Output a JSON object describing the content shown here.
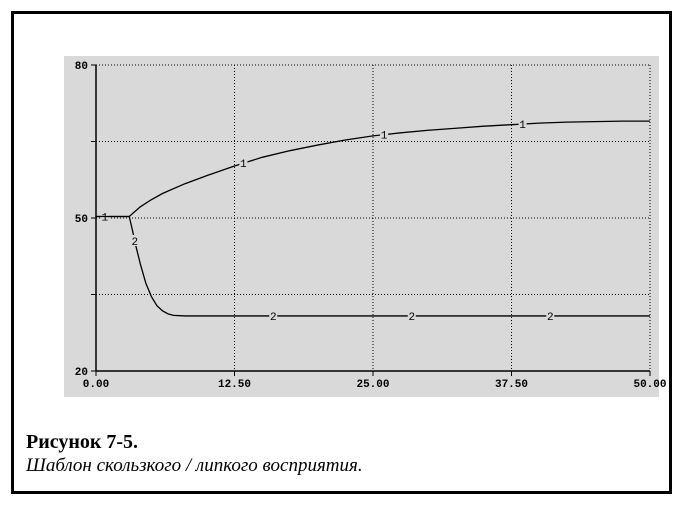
{
  "caption": {
    "title": "Рисунок 7-5.",
    "text": "Шаблон скользкого / липкого восприятия."
  },
  "chart_data": {
    "type": "line",
    "xlim": [
      0,
      50
    ],
    "ylim": [
      20,
      80
    ],
    "x_ticks": [
      "0.00",
      "12.50",
      "25.00",
      "37.50",
      "50.00"
    ],
    "y_ticks": [
      "80",
      "50",
      "20"
    ],
    "x_grid": [
      12.5,
      25,
      37.5
    ],
    "y_grid": [
      35,
      50,
      65
    ],
    "grid": true,
    "background": "#d9d9d9",
    "series": [
      {
        "label": "1",
        "x": [
          0,
          3,
          4,
          5,
          6,
          8,
          10,
          12.5,
          15,
          17.5,
          20,
          22.5,
          25,
          27.5,
          30,
          32.5,
          35,
          37.5,
          40,
          42.5,
          45,
          47.5,
          50
        ],
        "y": [
          50.3,
          50.3,
          52.2,
          53.6,
          54.8,
          56.7,
          58.3,
          60.2,
          61.9,
          63.2,
          64.3,
          65.3,
          66.1,
          66.7,
          67.2,
          67.6,
          68.0,
          68.3,
          68.6,
          68.8,
          68.9,
          69.0,
          69.0
        ],
        "label_x": [
          0.8,
          13.3,
          26,
          38.5
        ]
      },
      {
        "label": "2",
        "x": [
          0,
          3,
          3.3,
          3.6,
          4,
          4.5,
          5,
          5.5,
          6,
          6.5,
          7,
          8,
          10,
          15,
          20,
          30,
          40,
          50
        ],
        "y": [
          50.3,
          50.3,
          47.5,
          44.5,
          41,
          37.2,
          34.6,
          32.8,
          31.8,
          31.2,
          30.9,
          30.8,
          30.8,
          30.8,
          30.8,
          30.8,
          30.8,
          30.8
        ],
        "label_x": [
          3.5,
          16,
          28.5,
          41
        ]
      }
    ]
  }
}
